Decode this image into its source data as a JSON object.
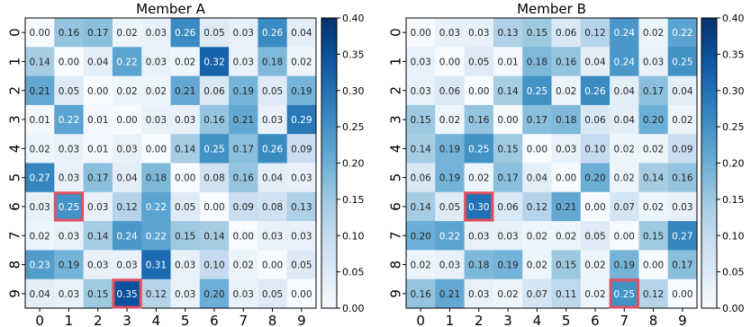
{
  "chart_data": [
    {
      "type": "heatmap",
      "title": "Member A",
      "x_ticks": [
        "0",
        "1",
        "2",
        "3",
        "4",
        "5",
        "6",
        "7",
        "8",
        "9"
      ],
      "y_ticks": [
        "0",
        "1",
        "2",
        "3",
        "4",
        "5",
        "6",
        "7",
        "8",
        "9"
      ],
      "values": [
        [
          0.0,
          0.16,
          0.17,
          0.02,
          0.03,
          0.26,
          0.05,
          0.03,
          0.26,
          0.04
        ],
        [
          0.14,
          0.0,
          0.04,
          0.22,
          0.03,
          0.02,
          0.32,
          0.03,
          0.18,
          0.02
        ],
        [
          0.21,
          0.05,
          0.0,
          0.02,
          0.02,
          0.21,
          0.06,
          0.19,
          0.05,
          0.19
        ],
        [
          0.01,
          0.22,
          0.01,
          0.0,
          0.03,
          0.03,
          0.16,
          0.21,
          0.03,
          0.29
        ],
        [
          0.02,
          0.03,
          0.01,
          0.03,
          0.0,
          0.14,
          0.25,
          0.17,
          0.26,
          0.09
        ],
        [
          0.27,
          0.03,
          0.17,
          0.04,
          0.18,
          0.0,
          0.08,
          0.16,
          0.04,
          0.03
        ],
        [
          0.03,
          0.25,
          0.03,
          0.12,
          0.22,
          0.05,
          0.0,
          0.09,
          0.08,
          0.13
        ],
        [
          0.02,
          0.03,
          0.14,
          0.24,
          0.22,
          0.15,
          0.14,
          0.0,
          0.03,
          0.03
        ],
        [
          0.23,
          0.19,
          0.03,
          0.03,
          0.31,
          0.03,
          0.1,
          0.02,
          0.0,
          0.05
        ],
        [
          0.04,
          0.03,
          0.15,
          0.35,
          0.12,
          0.03,
          0.2,
          0.03,
          0.05,
          0.0
        ]
      ],
      "highlights": [
        [
          6,
          1
        ],
        [
          9,
          3
        ]
      ],
      "colorbar": {
        "min": 0.0,
        "max": 0.4,
        "ticks": [
          "0.00",
          "0.05",
          "0.10",
          "0.15",
          "0.20",
          "0.25",
          "0.30",
          "0.35",
          "0.40"
        ]
      },
      "colormap": "Blues",
      "highlight_color": "#e05060"
    },
    {
      "type": "heatmap",
      "title": "Member B",
      "x_ticks": [
        "0",
        "1",
        "2",
        "3",
        "4",
        "5",
        "6",
        "7",
        "8",
        "9"
      ],
      "y_ticks": [
        "0",
        "1",
        "2",
        "3",
        "4",
        "5",
        "6",
        "7",
        "8",
        "9"
      ],
      "values": [
        [
          0.0,
          0.03,
          0.03,
          0.13,
          0.15,
          0.06,
          0.12,
          0.24,
          0.02,
          0.22
        ],
        [
          0.03,
          0.0,
          0.05,
          0.01,
          0.18,
          0.16,
          0.04,
          0.24,
          0.03,
          0.25
        ],
        [
          0.03,
          0.06,
          0.0,
          0.14,
          0.25,
          0.02,
          0.26,
          0.04,
          0.17,
          0.04
        ],
        [
          0.15,
          0.02,
          0.16,
          0.0,
          0.17,
          0.18,
          0.06,
          0.04,
          0.2,
          0.02
        ],
        [
          0.14,
          0.19,
          0.25,
          0.15,
          0.0,
          0.03,
          0.1,
          0.02,
          0.02,
          0.09
        ],
        [
          0.06,
          0.19,
          0.02,
          0.17,
          0.04,
          0.0,
          0.2,
          0.02,
          0.14,
          0.16
        ],
        [
          0.14,
          0.05,
          0.3,
          0.06,
          0.12,
          0.21,
          0.0,
          0.07,
          0.02,
          0.03
        ],
        [
          0.2,
          0.22,
          0.03,
          0.03,
          0.02,
          0.02,
          0.05,
          0.0,
          0.15,
          0.27
        ],
        [
          0.02,
          0.03,
          0.18,
          0.19,
          0.02,
          0.15,
          0.02,
          0.19,
          0.0,
          0.17
        ],
        [
          0.16,
          0.21,
          0.03,
          0.02,
          0.07,
          0.11,
          0.02,
          0.25,
          0.12,
          0.0
        ]
      ],
      "highlights": [
        [
          6,
          2
        ],
        [
          9,
          7
        ]
      ],
      "colorbar": {
        "min": 0.0,
        "max": 0.4,
        "ticks": [
          "0.00",
          "0.05",
          "0.10",
          "0.15",
          "0.20",
          "0.25",
          "0.30",
          "0.35",
          "0.40"
        ]
      },
      "colormap": "Blues",
      "highlight_color": "#e05060"
    }
  ]
}
